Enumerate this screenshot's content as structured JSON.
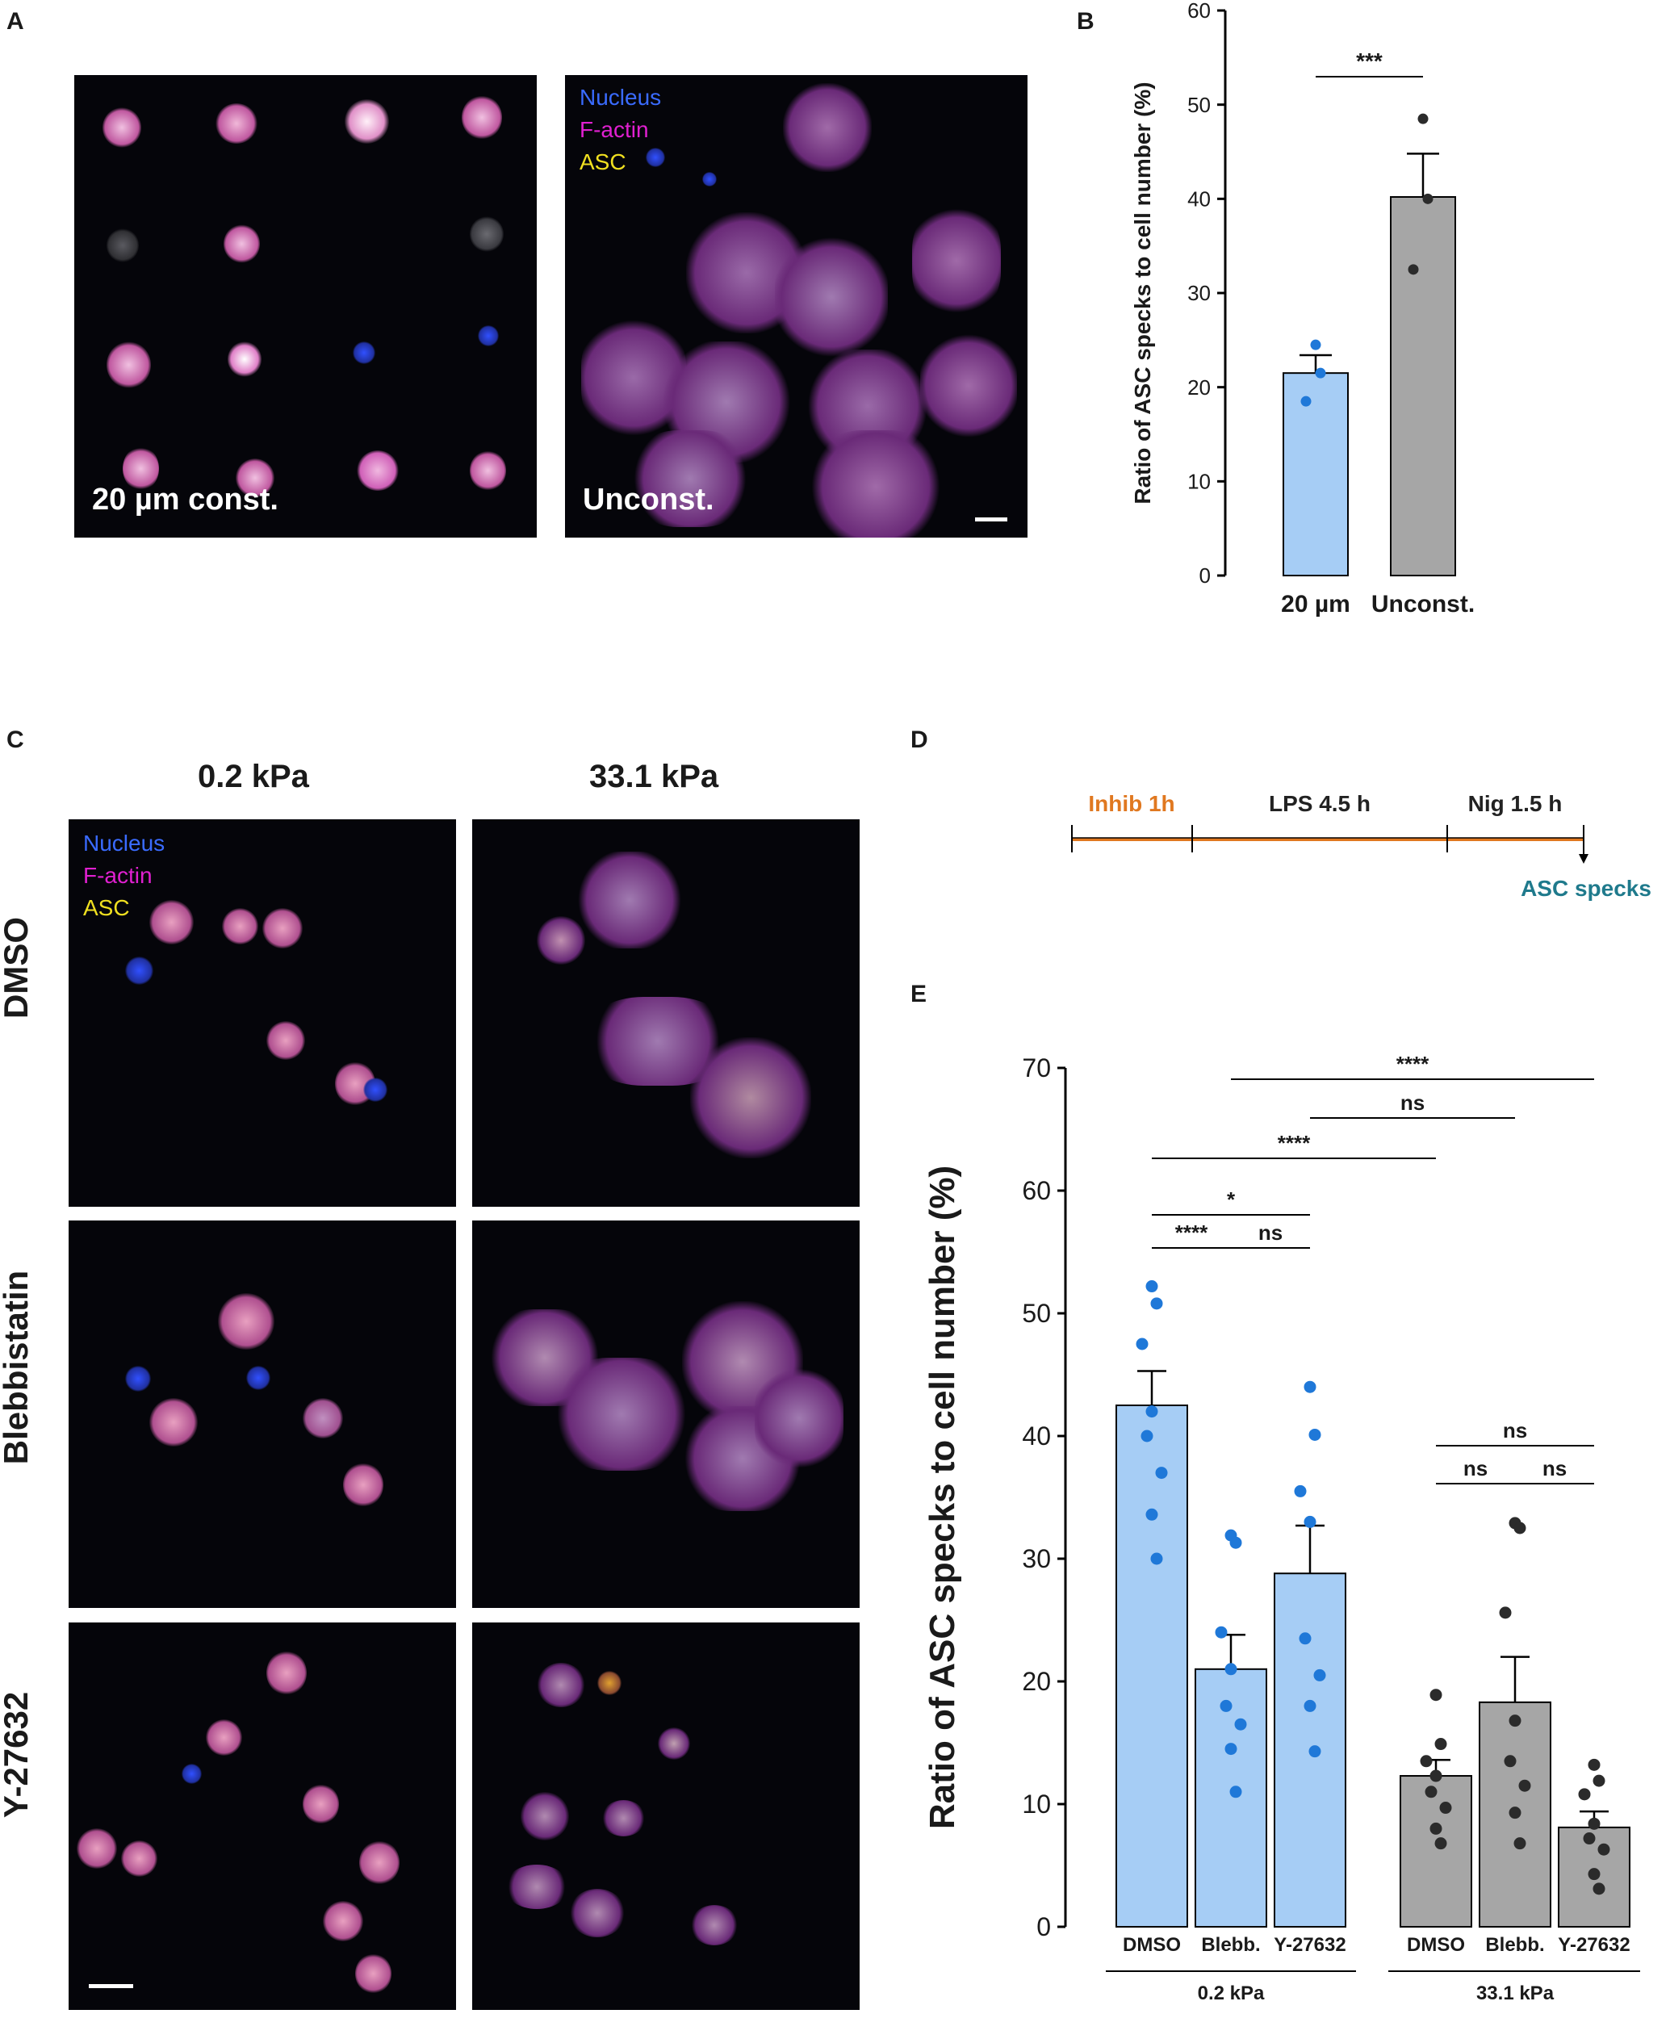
{
  "panels": {
    "A": {
      "letter": "A",
      "left": {
        "label": "20 µm const."
      },
      "right": {
        "label": "Unconst."
      },
      "legend": {
        "nucleus": "Nucleus",
        "factin": "F-actin",
        "asc": "ASC"
      }
    },
    "B": {
      "letter": "B"
    },
    "C": {
      "letter": "C",
      "col_headers": [
        "0.2 kPa",
        "33.1 kPa"
      ],
      "row_headers": [
        "DMSO",
        "Blebbistatin",
        "Y-27632"
      ],
      "legend": {
        "nucleus": "Nucleus",
        "factin": "F-actin",
        "asc": "ASC"
      }
    },
    "D": {
      "letter": "D",
      "steps": [
        "Inhib 1h",
        "LPS 4.5 h",
        "Nig 1.5 h"
      ],
      "endpoint": "ASC specks"
    },
    "E": {
      "letter": "E"
    }
  },
  "colors": {
    "blue_bar": "#a6cdf5",
    "blue_dot": "#1f78d8",
    "gray_bar": "#a6a6a6",
    "gray_dot": "#2b2b2b",
    "nucleus": "#3a6bff",
    "factin": "#e020d0",
    "asc": "#f0e020",
    "timeline": "#e07820",
    "endpoint": "#1f7a8c"
  },
  "chart_data": [
    {
      "type": "bar",
      "id": "B",
      "categories": [
        "20 µm",
        "Unconst."
      ],
      "values": [
        21.5,
        40.2
      ],
      "errors": [
        1.9,
        4.6
      ],
      "points": [
        [
          24.5,
          21.5,
          18.5
        ],
        [
          48.5,
          40.0,
          32.5
        ]
      ],
      "ylabel": "Ratio of ASC specks to cell number (%)",
      "ylim": [
        0,
        60
      ],
      "yticks": [
        0,
        10,
        20,
        30,
        40,
        50,
        60
      ],
      "significance": [
        {
          "a": 0,
          "b": 1,
          "label": "***"
        }
      ]
    },
    {
      "type": "bar",
      "id": "E",
      "groups": [
        "0.2 kPa",
        "33.1 kPa"
      ],
      "categories": [
        "DMSO",
        "Blebb.",
        "Y-27632",
        "DMSO",
        "Blebb.",
        "Y-27632"
      ],
      "values": [
        42.5,
        21.0,
        28.8,
        12.3,
        18.3,
        8.1
      ],
      "errors": [
        2.8,
        2.8,
        3.9,
        1.3,
        3.7,
        1.3
      ],
      "points": [
        [
          52.2,
          50.8,
          47.5,
          42.0,
          40.0,
          37.0,
          33.6,
          30.0
        ],
        [
          31.9,
          31.3,
          24.0,
          21.0,
          18.0,
          16.5,
          14.5,
          11.0
        ],
        [
          44.0,
          40.1,
          35.5,
          33.0,
          23.5,
          20.5,
          18.0,
          14.3
        ],
        [
          18.9,
          14.9,
          13.5,
          12.3,
          11.0,
          9.7,
          8.0,
          6.8
        ],
        [
          32.9,
          32.5,
          25.6,
          16.8,
          13.5,
          11.5,
          9.3,
          6.8
        ],
        [
          13.2,
          11.9,
          10.8,
          8.4,
          7.2,
          6.3,
          4.3,
          3.1
        ]
      ],
      "ylabel": "Ratio of ASC specks to cell number (%)",
      "ylim": [
        0,
        70
      ],
      "yticks": [
        0,
        10,
        20,
        30,
        40,
        50,
        60,
        70
      ],
      "significance": [
        {
          "a": 1,
          "b": 5,
          "label": "****"
        },
        {
          "a": 2,
          "b": 4,
          "label": "ns"
        },
        {
          "a": 0,
          "b": 3,
          "label": "****"
        },
        {
          "a": 0,
          "b": 2,
          "label": "*"
        },
        {
          "a": 0,
          "b": 1,
          "label": "****"
        },
        {
          "a": 1,
          "b": 2,
          "label": "ns"
        },
        {
          "a": 3,
          "b": 5,
          "label": "ns"
        },
        {
          "a": 3,
          "b": 4,
          "label": "ns"
        },
        {
          "a": 4,
          "b": 5,
          "label": "ns"
        }
      ]
    }
  ]
}
